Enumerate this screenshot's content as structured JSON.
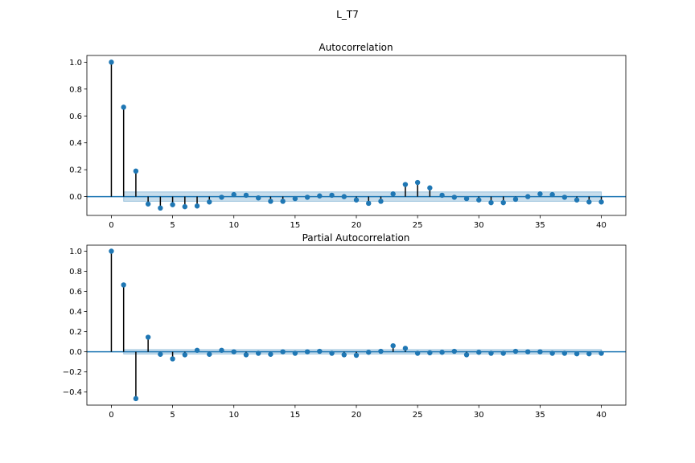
{
  "figure": {
    "title": "L_T7"
  },
  "colors": {
    "marker": "#1f77b4",
    "stem": "#000000",
    "band": "#1f77b4",
    "axis": "#000000"
  },
  "chart_data": [
    {
      "type": "scatter",
      "title": "Autocorrelation",
      "xlabel": "",
      "ylabel": "",
      "xlim": [
        -2,
        42
      ],
      "ylim": [
        -0.14,
        1.05
      ],
      "xticks": [
        0,
        5,
        10,
        15,
        20,
        25,
        30,
        35,
        40
      ],
      "yticks": [
        0.0,
        0.2,
        0.4,
        0.6,
        0.8,
        1.0
      ],
      "ytick_labels": [
        "0.0",
        "0.2",
        "0.4",
        "0.6",
        "0.8",
        "1.0"
      ],
      "grid": false,
      "lags": [
        0,
        1,
        2,
        3,
        4,
        5,
        6,
        7,
        8,
        9,
        10,
        11,
        12,
        13,
        14,
        15,
        16,
        17,
        18,
        19,
        20,
        21,
        22,
        23,
        24,
        25,
        26,
        27,
        28,
        29,
        30,
        31,
        32,
        33,
        34,
        35,
        36,
        37,
        38,
        39,
        40
      ],
      "values": [
        1.0,
        0.665,
        0.19,
        -0.055,
        -0.085,
        -0.06,
        -0.075,
        -0.07,
        -0.04,
        -0.005,
        0.015,
        0.01,
        -0.01,
        -0.035,
        -0.035,
        -0.015,
        -0.005,
        0.005,
        0.01,
        0.0,
        -0.025,
        -0.05,
        -0.035,
        0.02,
        0.09,
        0.105,
        0.065,
        0.01,
        -0.005,
        -0.015,
        -0.025,
        -0.045,
        -0.045,
        -0.02,
        0.0,
        0.02,
        0.015,
        -0.005,
        -0.025,
        -0.04,
        -0.04
      ],
      "confidence_band": {
        "lags": [
          1,
          40
        ],
        "upper": 0.035,
        "lower": -0.035
      }
    },
    {
      "type": "scatter",
      "title": "Partial Autocorrelation",
      "xlabel": "",
      "ylabel": "",
      "xlim": [
        -2,
        42
      ],
      "ylim": [
        -0.53,
        1.06
      ],
      "xticks": [
        0,
        5,
        10,
        15,
        20,
        25,
        30,
        35,
        40
      ],
      "yticks": [
        -0.4,
        -0.2,
        0.0,
        0.2,
        0.4,
        0.6,
        0.8,
        1.0
      ],
      "ytick_labels": [
        "−0.4",
        "−0.2",
        "0.0",
        "0.2",
        "0.4",
        "0.6",
        "0.8",
        "1.0"
      ],
      "grid": false,
      "lags": [
        0,
        1,
        2,
        3,
        4,
        5,
        6,
        7,
        8,
        9,
        10,
        11,
        12,
        13,
        14,
        15,
        16,
        17,
        18,
        19,
        20,
        21,
        22,
        23,
        24,
        25,
        26,
        27,
        28,
        29,
        30,
        31,
        32,
        33,
        34,
        35,
        36,
        37,
        38,
        39,
        40
      ],
      "values": [
        1.0,
        0.665,
        -0.465,
        0.145,
        -0.025,
        -0.07,
        -0.03,
        0.015,
        -0.025,
        0.015,
        0.0,
        -0.03,
        -0.015,
        -0.025,
        0.0,
        -0.015,
        0.0,
        0.005,
        -0.015,
        -0.03,
        -0.035,
        -0.005,
        0.005,
        0.06,
        0.035,
        -0.015,
        -0.01,
        -0.005,
        0.005,
        -0.03,
        -0.005,
        -0.015,
        -0.015,
        0.005,
        0.0,
        0.0,
        -0.015,
        -0.015,
        -0.02,
        -0.02,
        -0.015
      ],
      "confidence_band": {
        "lags": [
          1,
          40
        ],
        "upper": 0.022,
        "lower": -0.022
      }
    }
  ]
}
